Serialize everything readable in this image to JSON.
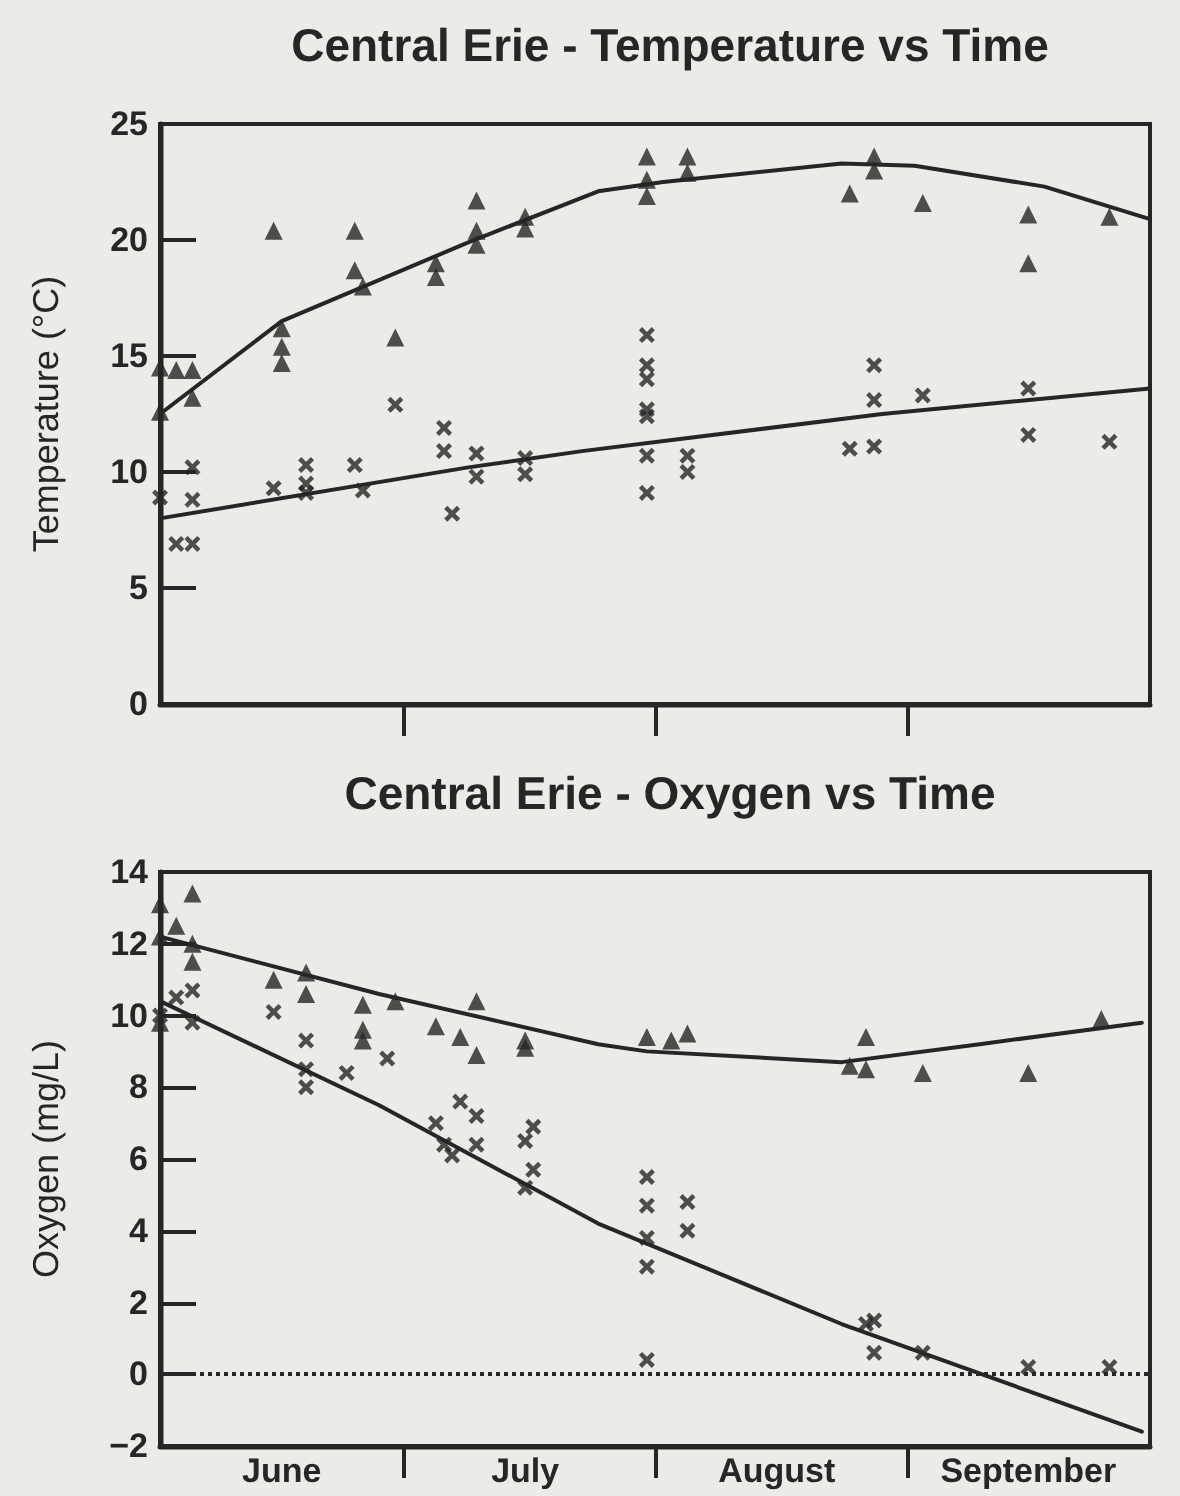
{
  "chart_data": [
    {
      "type": "scatter",
      "title": "Central Erie - Temperature vs Time",
      "ylabel": "Temperature (°C)",
      "xlim": [
        "--06-01",
        "--10-01"
      ],
      "xticks": [
        {
          "value": "--07-01",
          "label": null
        },
        {
          "value": "--08-01",
          "label": null
        },
        {
          "value": "--09-01",
          "label": null
        }
      ],
      "ylim": [
        0,
        25
      ],
      "yticks": [
        0,
        5,
        10,
        15,
        20,
        25
      ],
      "tick_labels": "y",
      "grid": false,
      "series": [
        {
          "marker": "triangle",
          "color": "#262626",
          "x": [
            "--06-01",
            "--06-01",
            "--06-03",
            "--06-05",
            "--06-05",
            "--06-15",
            "--06-16",
            "--06-16",
            "--06-16",
            "--06-25",
            "--06-25",
            "--06-26",
            "--06-30",
            "--07-05",
            "--07-05",
            "--07-10",
            "--07-10",
            "--07-10",
            "--07-16",
            "--07-16",
            "--07-31",
            "--07-31",
            "--07-31",
            "--08-05",
            "--08-05",
            "--08-25",
            "--08-28",
            "--08-28",
            "--09-03",
            "--09-16",
            "--09-16",
            "--09-26"
          ],
          "values": [
            14.5,
            12.6,
            14.4,
            14.4,
            13.2,
            20.4,
            16.2,
            15.4,
            14.7,
            20.4,
            18.7,
            18.0,
            15.8,
            19.0,
            18.4,
            21.7,
            20.4,
            19.8,
            21.0,
            20.5,
            23.6,
            21.9,
            22.6,
            23.6,
            22.9,
            22.0,
            23.6,
            23.0,
            21.6,
            21.1,
            19.0,
            21.0
          ]
        },
        {
          "marker": "cross",
          "color": "#262626",
          "x": [
            "--06-01",
            "--06-03",
            "--06-05",
            "--06-05",
            "--06-05",
            "--06-15",
            "--06-19",
            "--06-19",
            "--06-19",
            "--06-25",
            "--06-26",
            "--06-30",
            "--07-06",
            "--07-06",
            "--07-07",
            "--07-10",
            "--07-10",
            "--07-16",
            "--07-16",
            "--07-31",
            "--07-31",
            "--07-31",
            "--07-31",
            "--07-31",
            "--07-31",
            "--07-31",
            "--08-05",
            "--08-05",
            "--08-25",
            "--08-28",
            "--08-28",
            "--08-28",
            "--09-03",
            "--09-16",
            "--09-16",
            "--09-26"
          ],
          "values": [
            8.9,
            6.9,
            6.9,
            10.2,
            8.8,
            9.3,
            10.3,
            9.5,
            9.1,
            10.3,
            9.2,
            12.9,
            11.9,
            10.9,
            8.2,
            10.8,
            9.8,
            10.6,
            9.9,
            15.9,
            14.6,
            14.0,
            12.4,
            12.7,
            10.7,
            9.1,
            10.7,
            10.0,
            11.0,
            14.6,
            13.1,
            11.1,
            13.3,
            13.6,
            11.6,
            11.3
          ]
        },
        {
          "type": "line",
          "marker": "none",
          "line_style": "solid",
          "color": "#262626",
          "x": [
            "--06-01",
            "--06-16",
            "--07-09",
            "--07-25",
            "--08-02",
            "--08-24",
            "--09-02",
            "--09-18",
            "--10-01"
          ],
          "values": [
            12.5,
            16.5,
            19.9,
            22.1,
            22.5,
            23.3,
            23.2,
            22.3,
            20.9
          ]
        },
        {
          "type": "line",
          "marker": "none",
          "line_style": "solid",
          "color": "#262626",
          "x": [
            "--06-01",
            "--07-09",
            "--07-23",
            "--08-29",
            "--10-01"
          ],
          "values": [
            8.0,
            10.2,
            10.9,
            12.5,
            13.6
          ]
        }
      ]
    },
    {
      "type": "scatter",
      "title": "Central Erie - Oxygen vs Time",
      "ylabel": "Oxygen (mg/L)",
      "xlim": [
        "--06-01",
        "--10-01"
      ],
      "xticks": [
        {
          "value": "--06-16",
          "label": "June"
        },
        {
          "value": "--07-01",
          "label": null
        },
        {
          "value": "--07-16",
          "label": "July"
        },
        {
          "value": "--08-01",
          "label": null
        },
        {
          "value": "--08-16",
          "label": "August"
        },
        {
          "value": "--09-01",
          "label": null
        },
        {
          "value": "--09-16",
          "label": "September"
        }
      ],
      "ylim": [
        -2,
        14
      ],
      "yticks": [
        -2,
        0,
        2,
        4,
        6,
        8,
        10,
        12,
        14
      ],
      "grid": false,
      "ref_lines": [
        {
          "axis": "y",
          "value": 0,
          "line_style": "dotted",
          "color": "#262626"
        }
      ],
      "series": [
        {
          "marker": "triangle",
          "color": "#262626",
          "x": [
            "--06-01",
            "--06-01",
            "--06-01",
            "--06-03",
            "--06-05",
            "--06-05",
            "--06-05",
            "--06-15",
            "--06-19",
            "--06-19",
            "--06-26",
            "--06-26",
            "--06-26",
            "--06-30",
            "--07-05",
            "--07-08",
            "--07-10",
            "--07-10",
            "--07-16",
            "--07-16",
            "--07-31",
            "--08-03",
            "--08-05",
            "--08-25",
            "--08-27",
            "--08-27",
            "--09-03",
            "--09-16",
            "--09-25"
          ],
          "values": [
            13.1,
            12.2,
            9.8,
            12.5,
            13.4,
            12.0,
            11.5,
            11.0,
            11.2,
            10.6,
            10.3,
            9.6,
            9.3,
            10.4,
            9.7,
            9.4,
            10.4,
            8.9,
            9.3,
            9.1,
            9.4,
            9.3,
            9.5,
            8.6,
            9.4,
            8.5,
            8.4,
            8.4,
            9.9
          ]
        },
        {
          "marker": "cross",
          "color": "#262626",
          "x": [
            "--06-01",
            "--06-03",
            "--06-05",
            "--06-05",
            "--06-15",
            "--06-19",
            "--06-19",
            "--06-19",
            "--06-24",
            "--06-29",
            "--07-05",
            "--07-06",
            "--07-08",
            "--07-07",
            "--07-10",
            "--07-10",
            "--07-16",
            "--07-17",
            "--07-17",
            "--07-16",
            "--07-31",
            "--07-31",
            "--07-31",
            "--07-31",
            "--07-31",
            "--08-05",
            "--08-05",
            "--08-27",
            "--08-28",
            "--08-28",
            "--09-03",
            "--09-16",
            "--09-26"
          ],
          "values": [
            10.0,
            10.5,
            10.7,
            9.8,
            10.1,
            9.3,
            8.5,
            8.0,
            8.4,
            8.8,
            7.0,
            6.4,
            7.6,
            6.1,
            7.2,
            6.4,
            6.5,
            6.9,
            5.7,
            5.2,
            5.5,
            4.7,
            3.8,
            3.0,
            0.4,
            4.8,
            4.0,
            1.4,
            1.5,
            0.6,
            0.6,
            0.2,
            0.2
          ]
        },
        {
          "type": "line",
          "marker": "none",
          "line_style": "solid",
          "color": "#262626",
          "x": [
            "--06-01",
            "--06-28",
            "--07-25",
            "--07-31",
            "--08-24",
            "--09-10",
            "--09-30"
          ],
          "values": [
            12.2,
            10.6,
            9.2,
            9.0,
            8.7,
            9.2,
            9.8
          ]
        },
        {
          "type": "line",
          "marker": "none",
          "line_style": "solid",
          "color": "#262626",
          "x": [
            "--06-01",
            "--06-28",
            "--07-25",
            "--08-24",
            "--09-30"
          ],
          "values": [
            10.4,
            7.5,
            4.2,
            1.4,
            -1.6
          ]
        }
      ]
    }
  ]
}
